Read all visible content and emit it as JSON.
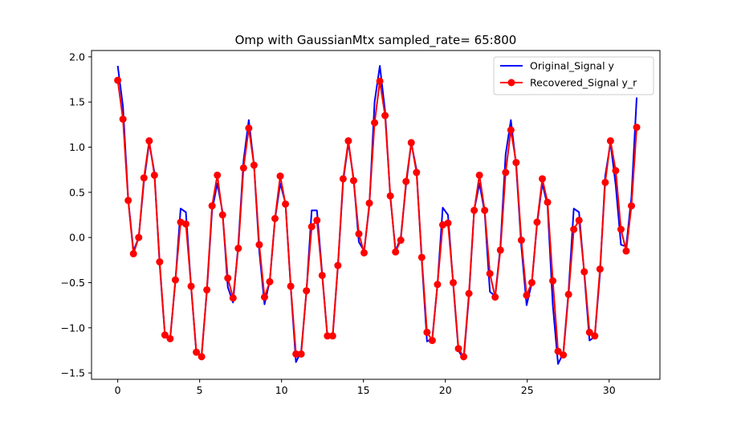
{
  "chart_data": {
    "type": "line",
    "title": "Omp with GaussianMtx sampled_rate= 65:800",
    "xlabel": "",
    "ylabel": "",
    "xlim": [
      -1.6,
      33.1
    ],
    "ylim": [
      -1.57,
      2.07
    ],
    "xticks": [
      0,
      5,
      10,
      15,
      20,
      25,
      30
    ],
    "yticks": [
      -1.5,
      -1.0,
      -0.5,
      0.0,
      0.5,
      1.0,
      1.5,
      2.0
    ],
    "ytick_labels": [
      "−1.5",
      "−1.0",
      "−0.5",
      "0.0",
      "0.5",
      "1.0",
      "1.5",
      "2.0"
    ],
    "grid": false,
    "legend_position": "top-right",
    "series": [
      {
        "name": "Original_Signal y",
        "color": "#0000ff",
        "marker": "none",
        "x": [
          0,
          0.32,
          0.64,
          0.96,
          1.28,
          1.6,
          1.92,
          2.24,
          2.56,
          2.88,
          3.2,
          3.52,
          3.84,
          4.16,
          4.48,
          4.8,
          5.12,
          5.44,
          5.76,
          6.08,
          6.4,
          6.72,
          7.04,
          7.36,
          7.68,
          8.0,
          8.32,
          8.64,
          8.96,
          9.28,
          9.6,
          9.92,
          10.24,
          10.56,
          10.88,
          11.2,
          11.52,
          11.84,
          12.16,
          12.48,
          12.8,
          13.12,
          13.44,
          13.76,
          14.08,
          14.4,
          14.72,
          15.04,
          15.36,
          15.68,
          16.0,
          16.32,
          16.64,
          16.96,
          17.28,
          17.6,
          17.92,
          18.24,
          18.56,
          18.88,
          19.2,
          19.52,
          19.84,
          20.16,
          20.48,
          20.8,
          21.12,
          21.44,
          21.76,
          22.08,
          22.4,
          22.72,
          23.04,
          23.36,
          23.68,
          24.0,
          24.32,
          24.64,
          24.96,
          25.28,
          25.6,
          25.92,
          26.24,
          26.56,
          26.88,
          27.2,
          27.52,
          27.84,
          28.16,
          28.48,
          28.8,
          29.12,
          29.44,
          29.76,
          30.08,
          30.4,
          30.72,
          31.04,
          31.36,
          31.68
        ],
        "y": [
          1.9,
          1.45,
          0.42,
          -0.15,
          0.0,
          0.62,
          1.05,
          0.72,
          -0.3,
          -1.08,
          -1.12,
          -0.48,
          0.32,
          0.28,
          -0.55,
          -1.28,
          -1.3,
          -0.6,
          0.3,
          0.6,
          0.28,
          -0.55,
          -0.72,
          -0.08,
          0.85,
          1.3,
          0.8,
          -0.15,
          -0.74,
          -0.48,
          0.2,
          0.6,
          0.38,
          -0.55,
          -1.38,
          -1.26,
          -0.6,
          0.3,
          0.3,
          -0.4,
          -1.1,
          -1.1,
          -0.32,
          0.62,
          1.05,
          0.65,
          -0.05,
          -0.15,
          0.35,
          1.5,
          1.9,
          1.4,
          0.45,
          -0.15,
          0.0,
          0.58,
          1.05,
          0.75,
          -0.25,
          -1.15,
          -1.12,
          -0.52,
          0.33,
          0.25,
          -0.52,
          -1.25,
          -1.35,
          -0.65,
          0.3,
          0.6,
          0.28,
          -0.6,
          -0.65,
          -0.1,
          0.92,
          1.3,
          0.8,
          -0.1,
          -0.75,
          -0.5,
          0.15,
          0.6,
          0.35,
          -0.75,
          -1.4,
          -1.28,
          -0.6,
          0.32,
          0.28,
          -0.4,
          -1.14,
          -1.1,
          -0.4,
          0.68,
          1.05,
          0.58,
          -0.08,
          -0.1,
          0.45,
          1.55
        ],
        "label_note": "blue line without markers"
      },
      {
        "name": "Recovered_Signal y_r",
        "color": "#ff0000",
        "marker": "circle",
        "x": [
          0,
          0.32,
          0.64,
          0.96,
          1.28,
          1.6,
          1.92,
          2.24,
          2.56,
          2.88,
          3.2,
          3.52,
          3.84,
          4.16,
          4.48,
          4.8,
          5.12,
          5.44,
          5.76,
          6.08,
          6.4,
          6.72,
          7.04,
          7.36,
          7.68,
          8.0,
          8.32,
          8.64,
          8.96,
          9.28,
          9.6,
          9.92,
          10.24,
          10.56,
          10.88,
          11.2,
          11.52,
          11.84,
          12.16,
          12.48,
          12.8,
          13.12,
          13.44,
          13.76,
          14.08,
          14.4,
          14.72,
          15.04,
          15.36,
          15.68,
          16.0,
          16.32,
          16.64,
          16.96,
          17.28,
          17.6,
          17.92,
          18.24,
          18.56,
          18.88,
          19.2,
          19.52,
          19.84,
          20.16,
          20.48,
          20.8,
          21.12,
          21.44,
          21.76,
          22.08,
          22.4,
          22.72,
          23.04,
          23.36,
          23.68,
          24.0,
          24.32,
          24.64,
          24.96,
          25.28,
          25.6,
          25.92,
          26.24,
          26.56,
          26.88,
          27.2,
          27.52,
          27.84,
          28.16,
          28.48,
          28.8,
          29.12,
          29.44,
          29.76,
          30.08,
          30.4,
          30.72,
          31.04,
          31.36,
          31.68
        ],
        "y": [
          1.74,
          1.31,
          0.41,
          -0.18,
          0.0,
          0.66,
          1.07,
          0.69,
          -0.27,
          -1.08,
          -1.12,
          -0.47,
          0.17,
          0.15,
          -0.54,
          -1.27,
          -1.32,
          -0.58,
          0.35,
          0.69,
          0.25,
          -0.45,
          -0.67,
          -0.12,
          0.77,
          1.21,
          0.8,
          -0.08,
          -0.66,
          -0.49,
          0.21,
          0.68,
          0.37,
          -0.54,
          -1.29,
          -1.29,
          -0.59,
          0.12,
          0.19,
          -0.42,
          -1.09,
          -1.09,
          -0.31,
          0.65,
          1.07,
          0.63,
          0.04,
          -0.17,
          0.38,
          1.27,
          1.73,
          1.35,
          0.46,
          -0.16,
          -0.03,
          0.62,
          1.05,
          0.72,
          -0.22,
          -1.05,
          -1.14,
          -0.52,
          0.14,
          0.16,
          -0.5,
          -1.23,
          -1.32,
          -0.62,
          0.3,
          0.69,
          0.3,
          -0.4,
          -0.66,
          -0.14,
          0.72,
          1.19,
          0.83,
          -0.03,
          -0.64,
          -0.5,
          0.17,
          0.65,
          0.39,
          -0.48,
          -1.26,
          -1.3,
          -0.63,
          0.09,
          0.19,
          -0.38,
          -1.05,
          -1.09,
          -0.35,
          0.61,
          1.07,
          0.74,
          0.09,
          -0.15,
          0.35,
          1.22
        ]
      }
    ]
  }
}
